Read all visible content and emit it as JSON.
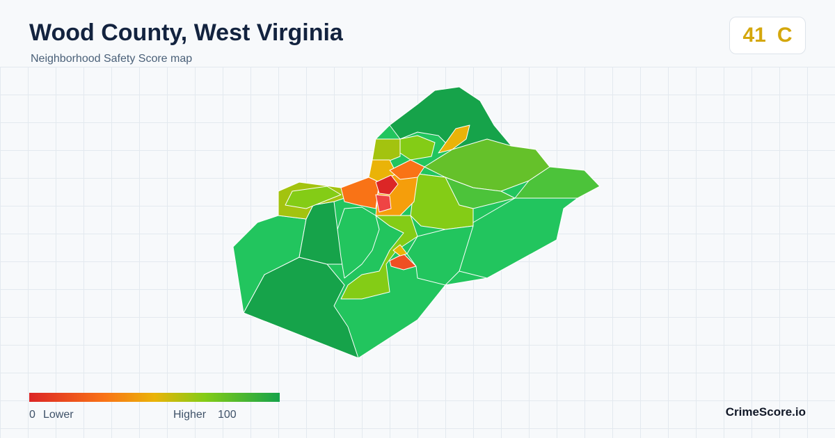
{
  "header": {
    "title": "Wood County, West Virginia",
    "subtitle": "Neighborhood Safety Score map"
  },
  "score": {
    "value": 41,
    "grade": "C"
  },
  "legend": {
    "min": 0,
    "min_label": "Lower",
    "max_label": "Higher",
    "max": 100
  },
  "footer": {
    "brand": "CrimeScore.io"
  }
}
